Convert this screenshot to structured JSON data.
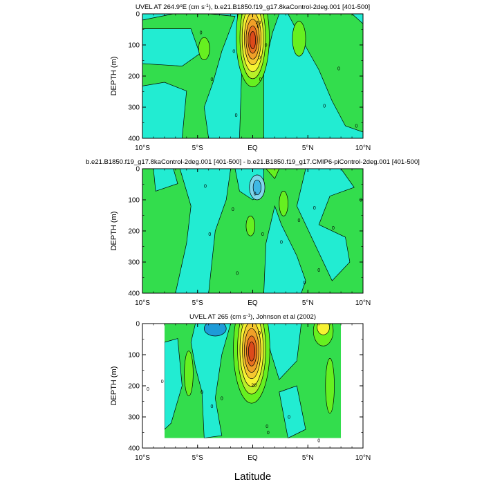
{
  "figure": {
    "xlabel": "Latitude"
  },
  "chart_data": [
    {
      "type": "heatmap",
      "title": "UVEL AT 264.9°E (cm s⁻¹), b.e21.B1850.f19_g17.8kaControl-2deg.001 [401-500]",
      "title_parts": {
        "pre": "UVEL AT 264.9",
        "sup_deg": "o",
        "mid": "E (cm s",
        "sup_unit": "-1",
        "post": "), b.e21.B1850.f19_g17.8kaControl-2deg.001 [401-500]"
      },
      "ylabel": "DEPTH (m)",
      "xlabel": "",
      "x_ticks": [
        "10°S",
        "5°S",
        "EQ",
        "5°N",
        "10°N"
      ],
      "y_ticks": [
        "0",
        "100",
        "200",
        "300",
        "400"
      ],
      "xlim": [
        -10,
        10
      ],
      "ylim": [
        400,
        0
      ],
      "colors": {
        "deep_cyan": "#00e5c8",
        "cyan": "#22ecd2",
        "green": "#33dd4d",
        "lime": "#66f020",
        "yellow": "#f6f232",
        "orange": "#f0a028",
        "red": "#dc4a1a",
        "blue": "#1d9bd8",
        "light_blue": "#7fd6ea"
      },
      "core": {
        "lat": 0.0,
        "depth": 75,
        "max": 70
      },
      "contour_labels": [
        {
          "text": "0",
          "lat": -4.7,
          "depth": 60
        },
        {
          "text": "0",
          "lat": -3.7,
          "depth": 210
        },
        {
          "text": "0",
          "lat": -1.7,
          "depth": 120
        },
        {
          "text": "0",
          "lat": -1.5,
          "depth": 325
        },
        {
          "text": "0",
          "lat": 0.5,
          "depth": 40
        },
        {
          "text": "0",
          "lat": 0.6,
          "depth": 140
        },
        {
          "text": "0",
          "lat": 0.7,
          "depth": 210
        },
        {
          "text": "0",
          "lat": 1.2,
          "depth": 100
        },
        {
          "text": "0",
          "lat": 7.8,
          "depth": 175
        },
        {
          "text": "0",
          "lat": 6.5,
          "depth": 295
        },
        {
          "text": "0",
          "lat": 9.4,
          "depth": 360
        },
        {
          "text": "20",
          "lat": 0.5,
          "depth": 28
        }
      ]
    },
    {
      "type": "heatmap",
      "title": "b.e21.B1850.f19_g17.8kaControl-2deg.001 [401-500] - b.e21.B1850.f19_g17.CMIP6-piControl-2deg.001 [401-500]",
      "ylabel": "DEPTH (m)",
      "xlabel": "",
      "x_ticks": [
        "10°S",
        "5°S",
        "EQ",
        "5°N",
        "10°N"
      ],
      "y_ticks": [
        "0",
        "100",
        "200",
        "300",
        "400"
      ],
      "xlim": [
        -10,
        10
      ],
      "ylim": [
        400,
        0
      ],
      "contour_labels": [
        {
          "text": "0",
          "lat": -4.3,
          "depth": 55
        },
        {
          "text": "0",
          "lat": -1.8,
          "depth": 130
        },
        {
          "text": "0",
          "lat": -3.9,
          "depth": 210
        },
        {
          "text": "0",
          "lat": -1.4,
          "depth": 335
        },
        {
          "text": "0",
          "lat": 0.2,
          "depth": 80
        },
        {
          "text": "0",
          "lat": 0.9,
          "depth": 210
        },
        {
          "text": "0",
          "lat": 2.6,
          "depth": 235
        },
        {
          "text": "0",
          "lat": 4.2,
          "depth": 165
        },
        {
          "text": "0",
          "lat": 5.6,
          "depth": 125
        },
        {
          "text": "0",
          "lat": 7.3,
          "depth": 190
        },
        {
          "text": "0",
          "lat": 9.8,
          "depth": 100
        },
        {
          "text": "0",
          "lat": 6.0,
          "depth": 325
        },
        {
          "text": "0",
          "lat": 4.7,
          "depth": 365
        }
      ]
    },
    {
      "type": "heatmap",
      "title": "UVEL AT 265 (cm s⁻¹), Johnson et al (2002)",
      "title_parts": {
        "pre": "UVEL AT 265 (cm s",
        "sup_unit": "-1",
        "post": "), Johnson et al (2002)"
      },
      "ylabel": "DEPTH (m)",
      "xlabel": "",
      "x_ticks": [
        "10°S",
        "5°S",
        "EQ",
        "5°N",
        "10°N"
      ],
      "y_ticks": [
        "0",
        "100",
        "200",
        "300",
        "400"
      ],
      "xlim": [
        -10,
        10
      ],
      "ylim": [
        400,
        0
      ],
      "data_extent_lat": [
        -8,
        8
      ],
      "core": {
        "lat": -0.1,
        "depth": 80,
        "max": 90
      },
      "contour_labels": [
        {
          "text": "0",
          "lat": -9.5,
          "depth": 210
        },
        {
          "text": "0",
          "lat": -8.2,
          "depth": 185
        },
        {
          "text": "0",
          "lat": -4.6,
          "depth": 220
        },
        {
          "text": "0",
          "lat": -2.8,
          "depth": 240
        },
        {
          "text": "0",
          "lat": -3.7,
          "depth": 265
        },
        {
          "text": "0",
          "lat": 0.6,
          "depth": 30
        },
        {
          "text": "20",
          "lat": 0.1,
          "depth": 198
        },
        {
          "text": "0",
          "lat": 1.4,
          "depth": 350
        },
        {
          "text": "0",
          "lat": 1.3,
          "depth": 330
        },
        {
          "text": "0",
          "lat": 3.3,
          "depth": 300
        },
        {
          "text": "0",
          "lat": 6.0,
          "depth": 375
        }
      ]
    }
  ]
}
